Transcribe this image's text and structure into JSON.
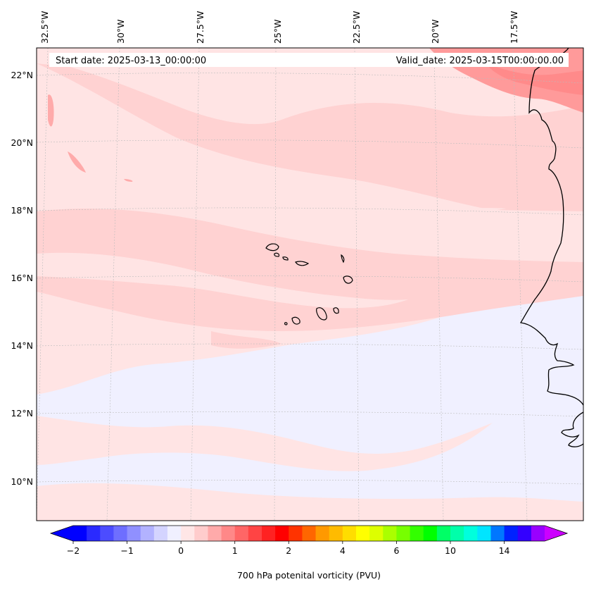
{
  "map": {
    "projection_note": "",
    "lon_labels": [
      "32.5°W",
      "30°W",
      "27.5°W",
      "25°W",
      "22.5°W",
      "20°W",
      "17.5°W"
    ],
    "lat_labels": [
      "22°N",
      "20°N",
      "18°N",
      "16°N",
      "14°N",
      "12°N",
      "10°N"
    ],
    "start_date": "Start date: 2025-03-13_00:00:00",
    "valid_date": "Valid_date: 2025-03-15T00:00:00.00",
    "colors": {
      "pv_0_025": "#fff0f0",
      "pv_025_05": "#ffe4e4",
      "pv_05_075": "#ffd2d2",
      "pv_075_1": "#ffa5a5",
      "pv_1_125": "#ff9090",
      "pv_neg": "#f0f0ff",
      "coast": "#000000"
    }
  },
  "colorbar": {
    "label": "700 hPa potenital vorticity (PVU)",
    "tick_labels": [
      "−2",
      "−1",
      "0",
      "1",
      "2",
      "4",
      "6",
      "10",
      "14"
    ],
    "colors": [
      "#0000ff",
      "#2a2aff",
      "#4c4cff",
      "#6e6eff",
      "#9090ff",
      "#b2b2ff",
      "#d4d4ff",
      "#f0f0ff",
      "#ffe6e6",
      "#ffcccc",
      "#ffaaaa",
      "#ff8888",
      "#ff6666",
      "#ff4444",
      "#ff2222",
      "#ff0000",
      "#ff3300",
      "#ff6600",
      "#ff9900",
      "#ffbb00",
      "#ffdd00",
      "#ffff00",
      "#ddff00",
      "#aaff00",
      "#77ff00",
      "#33ff00",
      "#00ff00",
      "#00ff66",
      "#00ffaa",
      "#00ffdd",
      "#00e5ff",
      "#0077ff",
      "#0022ff",
      "#3300ff",
      "#9900ff"
    ],
    "extend_low_color": "#0000ff",
    "extend_high_color": "#cc00ff"
  }
}
